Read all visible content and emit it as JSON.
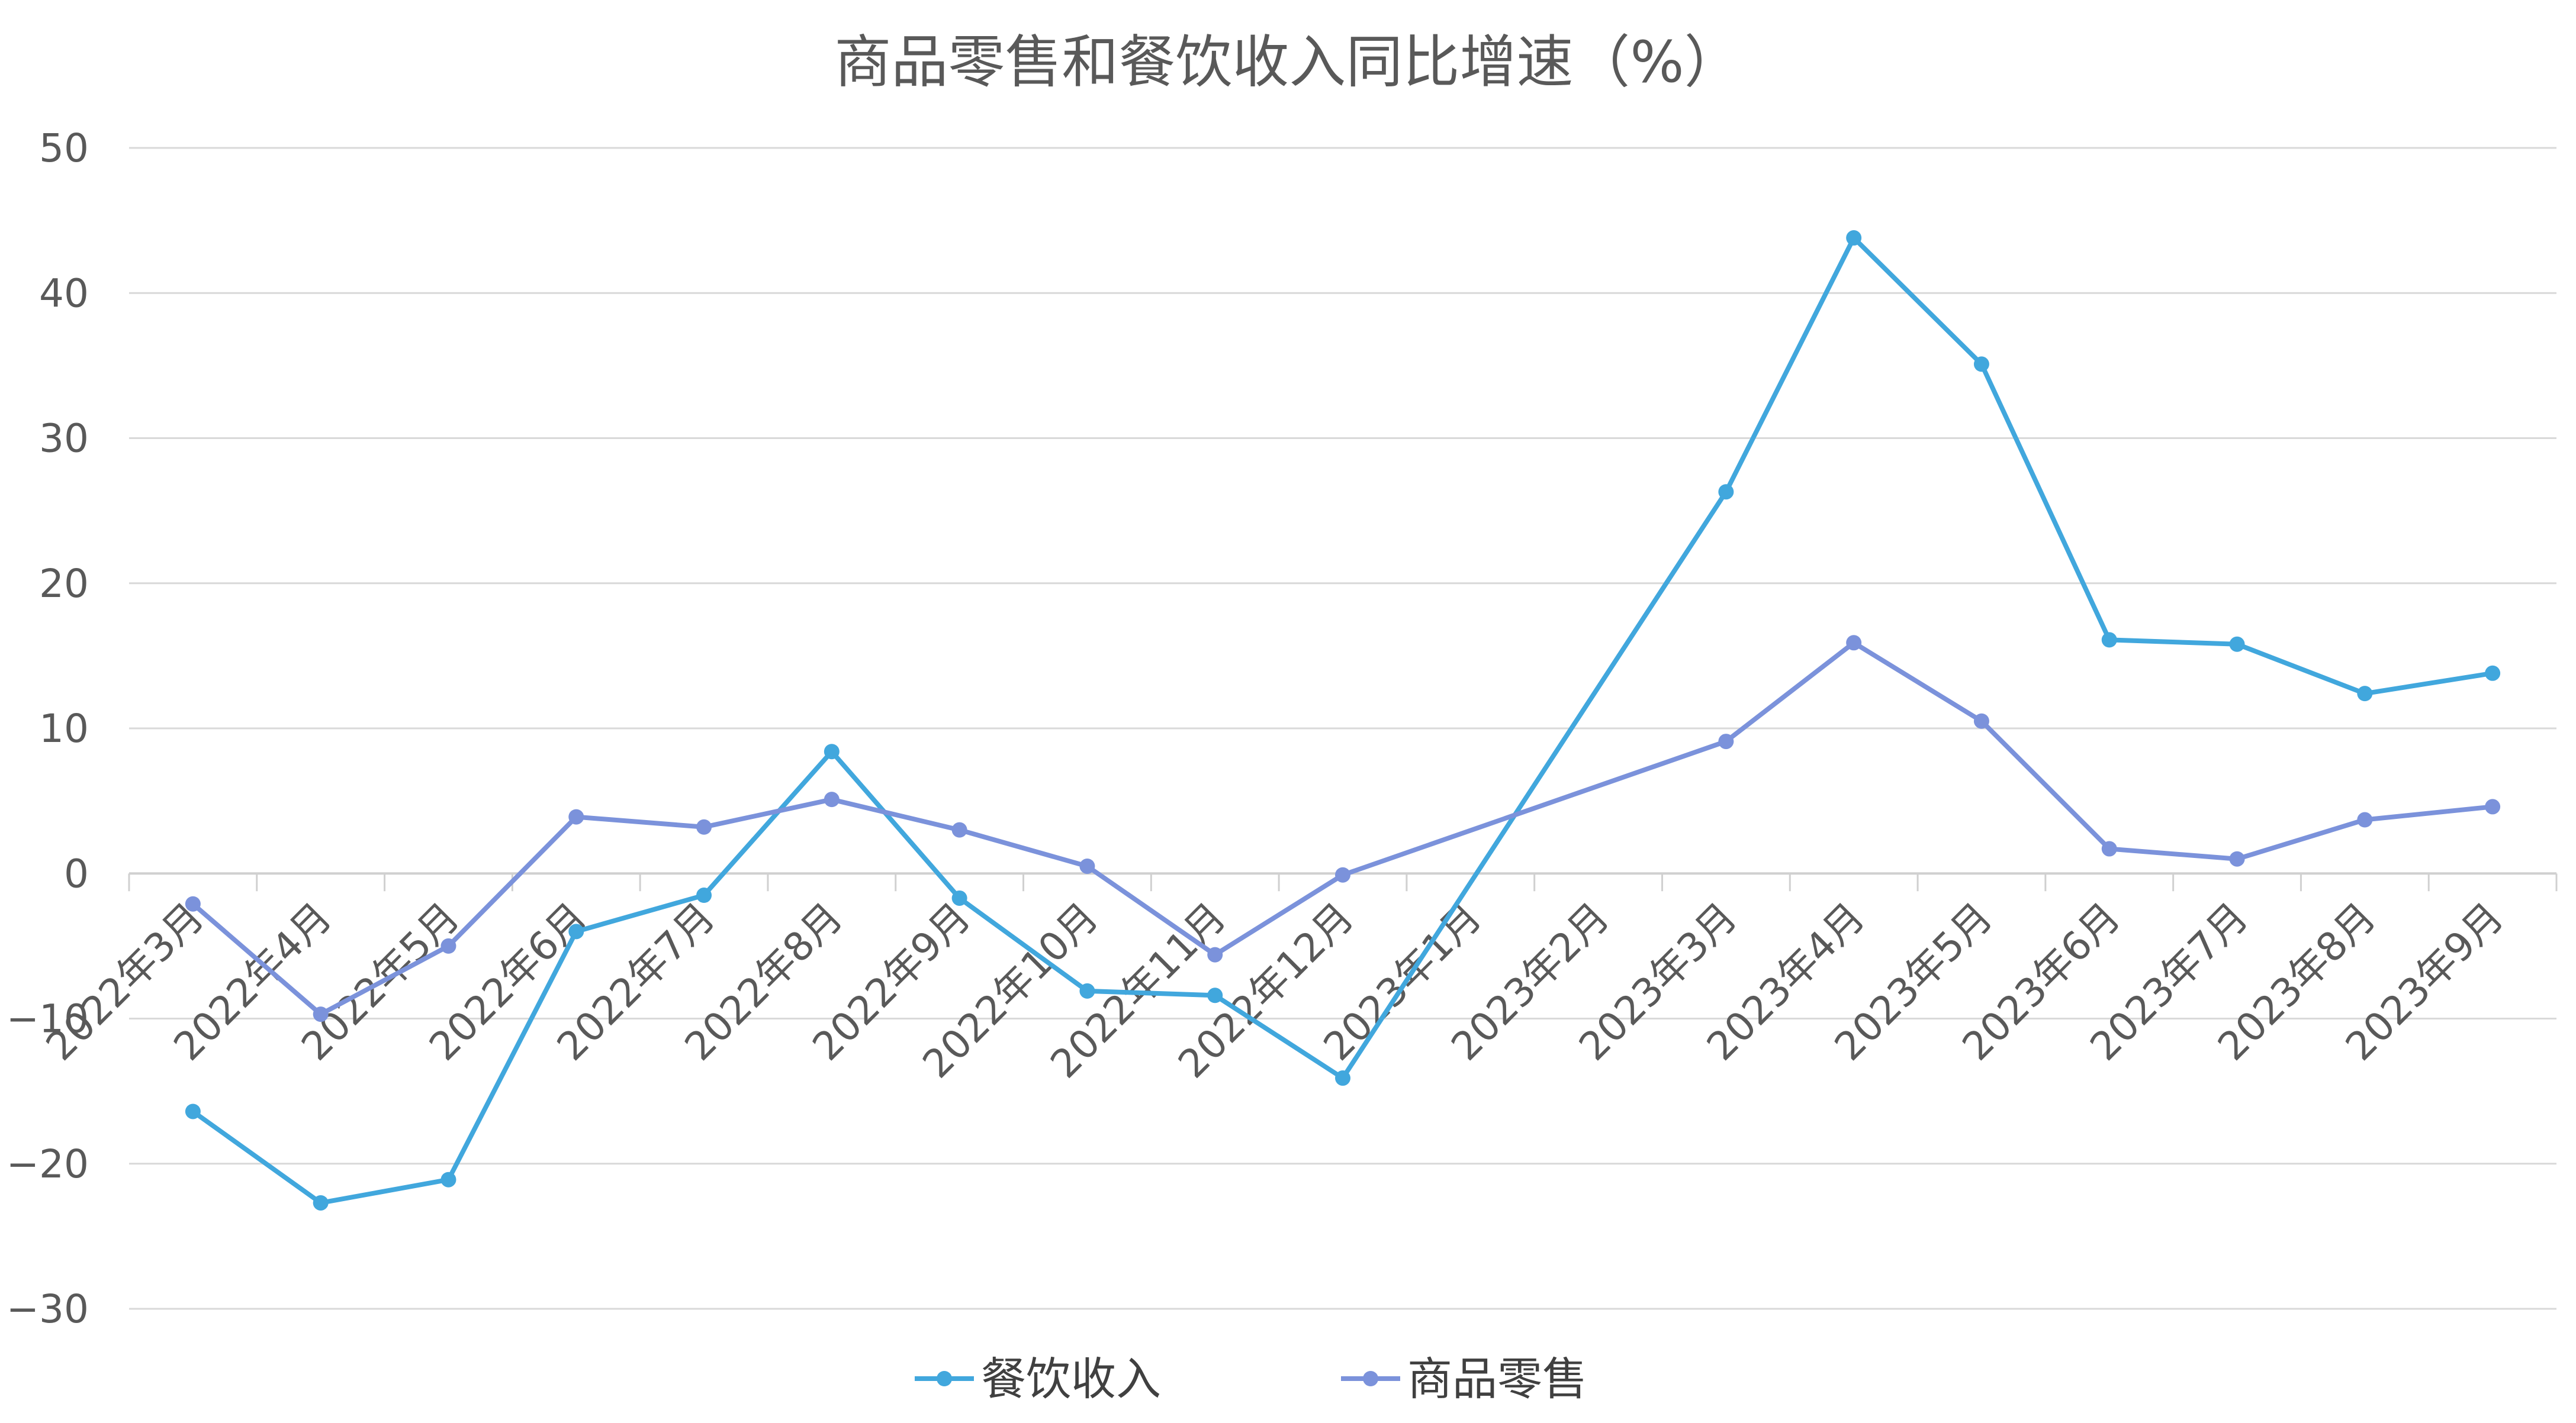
{
  "chart_data": {
    "type": "line",
    "title": "商品零售和餐饮收入同比增速（%）",
    "xlabel": "",
    "ylabel": "",
    "categories": [
      "2022年3月",
      "2022年4月",
      "2022年5月",
      "2022年6月",
      "2022年7月",
      "2022年8月",
      "2022年9月",
      "2022年10月",
      "2022年11月",
      "2022年12月",
      "2023年1月",
      "2023年2月",
      "2023年3月",
      "2023年4月",
      "2023年5月",
      "2023年6月",
      "2023年7月",
      "2023年8月",
      "2023年9月"
    ],
    "ylim": [
      -30,
      50
    ],
    "yticks": [
      -30,
      -20,
      -10,
      0,
      10,
      20,
      30,
      40,
      50
    ],
    "grid": true,
    "legend_position": "bottom",
    "series": [
      {
        "name": "餐饮收入",
        "color": "#41A7DD",
        "values": [
          -16.4,
          -22.7,
          -21.1,
          -4.0,
          -1.5,
          8.4,
          -1.7,
          -8.1,
          -8.4,
          -14.1,
          null,
          null,
          26.3,
          43.8,
          35.1,
          16.1,
          15.8,
          12.4,
          13.8
        ]
      },
      {
        "name": "商品零售",
        "color": "#7B92DB",
        "values": [
          -2.1,
          -9.7,
          -5.0,
          3.9,
          3.2,
          5.1,
          3.0,
          0.5,
          -5.6,
          -0.1,
          null,
          null,
          9.1,
          15.9,
          10.5,
          1.7,
          1.0,
          3.7,
          4.6
        ]
      }
    ]
  }
}
